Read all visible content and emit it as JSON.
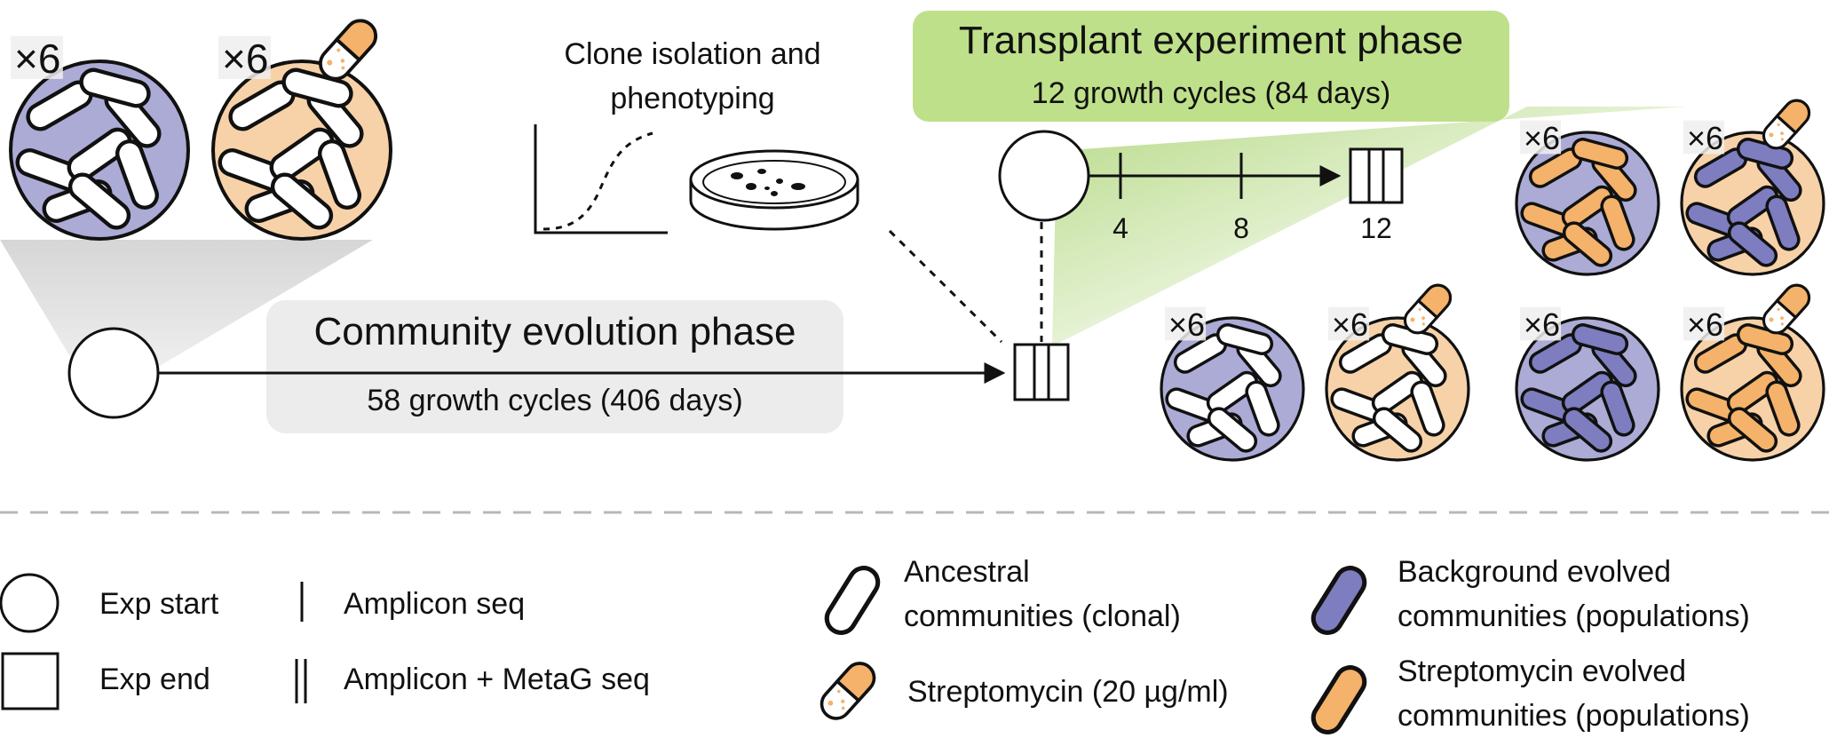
{
  "colors": {
    "background_evolved": "#7d7dbf",
    "background_circle": "#ababd6",
    "strep_evolved": "#f4b26a",
    "strep_circle": "#f7d2a8",
    "ancestral": "#ffffff",
    "transplant_box": "#bfe08a",
    "community_box": "#ececec",
    "green_gradient": "#9ccc5a"
  },
  "icons": {
    "ancestral_cell": "rod-cell-white",
    "background_cell": "rod-cell-purple",
    "strep_cell": "rod-cell-orange",
    "antibiotic": "pill-capsule-icon"
  },
  "top": {
    "ancestral_multiplier": "×6",
    "ancestral_strep_multiplier": "×6",
    "clone_title_line1": "Clone isolation and",
    "clone_title_line2": "phenotyping"
  },
  "community_phase": {
    "title": "Community evolution phase",
    "subtitle": "58 growth cycles (406 days)"
  },
  "transplant_phase": {
    "title": "Transplant experiment phase",
    "subtitle": "12 growth cycles (84 days)",
    "ticks": [
      "4",
      "8",
      "12"
    ]
  },
  "transplant_groups": {
    "bg_multiplier": "×6",
    "bg_strep_multiplier": "×6",
    "strep_multiplier": "×6",
    "strep_strep_multiplier": "×6",
    "anc_multiplier": "×6",
    "anc_strep_multiplier": "×6"
  },
  "legend": {
    "exp_start": "Exp start",
    "exp_end": "Exp end",
    "amplicon": "Amplicon seq",
    "amplicon_metag": "Amplicon + MetaG seq",
    "ancestral_line1": "Ancestral",
    "ancestral_line2": "communities (clonal)",
    "strep": "Streptomycin (20 µg/ml)",
    "background_line1": "Background evolved",
    "background_line2": "communities (populations)",
    "strep_evolved_line1": "Streptomycin evolved",
    "strep_evolved_line2": "communities (populations)"
  }
}
